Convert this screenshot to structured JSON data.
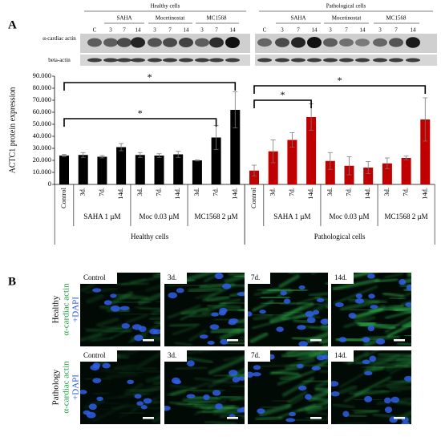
{
  "panel_labels": [
    "A",
    "B"
  ],
  "blot": {
    "groups": [
      {
        "title": "Healthy cells",
        "control": "C",
        "treatments": [
          {
            "name": "SAHA",
            "lanes": [
              "3",
              "7",
              "14"
            ]
          },
          {
            "name": "Mocetinostat",
            "lanes": [
              "3",
              "7",
              "14"
            ]
          },
          {
            "name": "MC1568",
            "lanes": [
              "3",
              "7",
              "14"
            ]
          }
        ]
      },
      {
        "title": "Pathological cells",
        "control": "C",
        "treatments": [
          {
            "name": "SAHA",
            "lanes": [
              "3",
              "7",
              "14"
            ]
          },
          {
            "name": "Mocetinostat",
            "lanes": [
              "3",
              "7",
              "14"
            ]
          },
          {
            "name": "MC1568",
            "lanes": [
              "3",
              "7",
              "14"
            ]
          }
        ]
      }
    ],
    "rows": [
      "α-cardiac actin",
      "beta-actin"
    ]
  },
  "chart_data": {
    "type": "bar",
    "ylabel": "ACTC1 protein expression",
    "ylim": [
      0,
      90000
    ],
    "yticks": [
      0,
      {
        "value": 10000,
        "label": "10.000"
      },
      {
        "value": 20000,
        "label": "20.000"
      },
      {
        "value": 30000,
        "label": "30.000"
      },
      {
        "value": 40000,
        "label": "40.000"
      },
      {
        "value": 50000,
        "label": "50.000"
      },
      {
        "value": 60000,
        "label": "60.000"
      },
      {
        "value": 70000,
        "label": "70.000"
      },
      {
        "value": 80000,
        "label": "80.000"
      },
      {
        "value": 90000,
        "label": "90.000"
      }
    ],
    "groups": [
      {
        "name": "Healthy cells",
        "color": "#000000",
        "categories": [
          "Control",
          "3d.",
          "7d.",
          "14d.",
          "3d.",
          "7d.",
          "14d.",
          "3d.",
          "7d.",
          "14d."
        ],
        "treatments": [
          "SAHA 1 µM",
          "Moc 0.03 µM",
          "MC1568 2 µM"
        ],
        "values": [
          24000,
          24500,
          23000,
          31000,
          24500,
          24000,
          25000,
          20000,
          39000,
          62000
        ],
        "errors": [
          1000,
          2000,
          1000,
          3000,
          2000,
          1500,
          2500,
          500,
          10000,
          15000
        ]
      },
      {
        "name": "Pathological cells",
        "color": "#c00000",
        "categories": [
          "Control",
          "3d.",
          "7d.",
          "14d.",
          "3d.",
          "7d.",
          "14d.",
          "3d.",
          "7d.",
          "14d."
        ],
        "treatments": [
          "SAHA 1 µM",
          "Moc 0.03 µM",
          "MC1568 2 µM"
        ],
        "values": [
          11500,
          27500,
          37000,
          56000,
          19500,
          15500,
          14000,
          17500,
          22000,
          54000
        ],
        "errors": [
          4500,
          9500,
          6000,
          11000,
          7000,
          7500,
          5000,
          4500,
          1500,
          18000
        ]
      }
    ],
    "annotations": [
      "*",
      "*",
      "*",
      "*"
    ]
  },
  "images": {
    "rows": [
      {
        "label": "Healthy",
        "stain": "α-cardiac actin",
        "counterstain": "+DAPI",
        "panels": [
          "Control",
          "3d.",
          "7d.",
          "14d."
        ]
      },
      {
        "label": "Pathology",
        "stain": "α-cardiac actin",
        "counterstain": "+DAPI",
        "panels": [
          "Control",
          "3d.",
          "7d.",
          "14d."
        ]
      }
    ]
  }
}
